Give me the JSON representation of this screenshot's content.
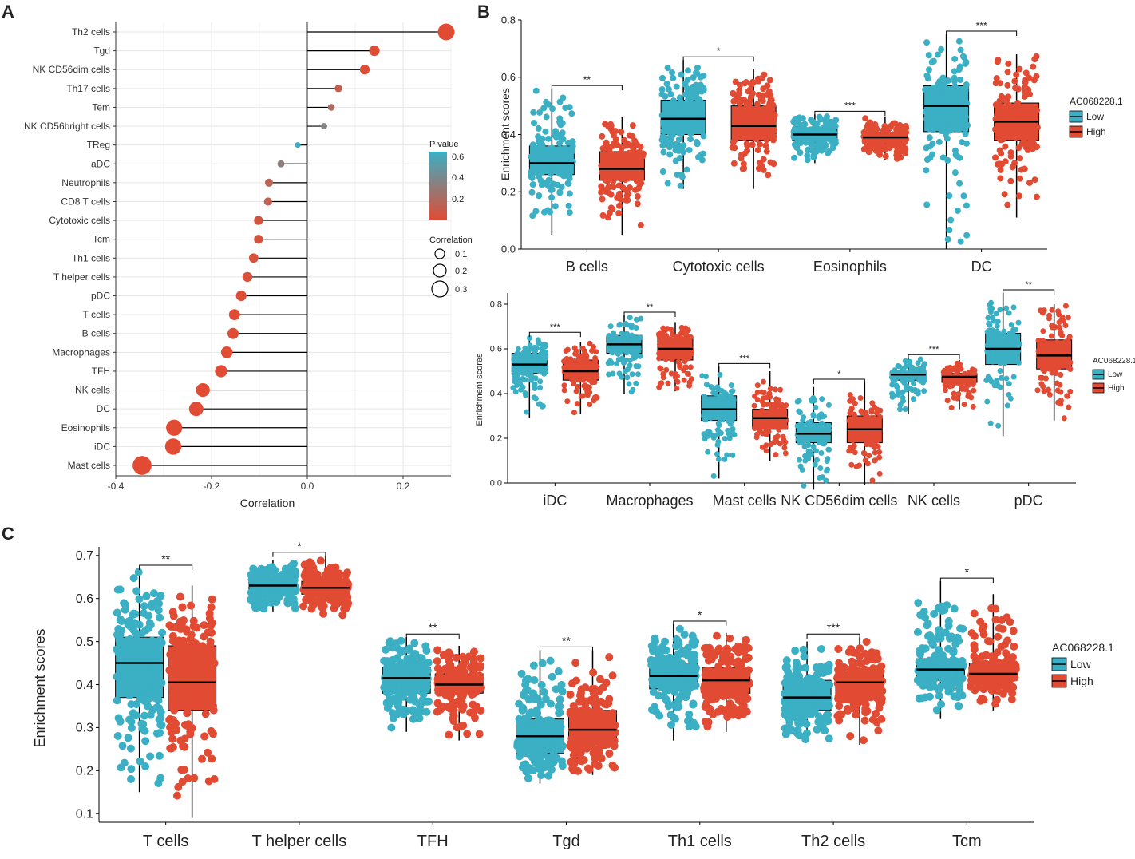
{
  "panel_labels": {
    "a": "A",
    "b": "B",
    "c": "C"
  },
  "colors": {
    "low": "#3BAFC4",
    "high": "#E24B33",
    "grid": "#e6e6e6",
    "line": "#000000"
  },
  "chart_data": [
    {
      "id": "A",
      "type": "lollipop",
      "xlabel": "Correlation",
      "xlim": [
        -0.4,
        0.3
      ],
      "xticks": [
        -0.4,
        -0.2,
        0.0,
        0.2
      ],
      "categories": [
        "Th2 cells",
        "Tgd",
        "NK CD56dim cells",
        "Th17 cells",
        "Tem",
        "NK CD56bright cells",
        "TReg",
        "aDC",
        "Neutrophils",
        "CD8 T cells",
        "Cytotoxic cells",
        "Tcm",
        "Th1 cells",
        "T helper cells",
        "pDC",
        "T cells",
        "B cells",
        "Macrophages",
        "TFH",
        "NK cells",
        "DC",
        "Eosinophils",
        "iDC",
        "Mast cells"
      ],
      "correlation": [
        0.29,
        0.14,
        0.12,
        0.065,
        0.05,
        0.035,
        -0.02,
        -0.055,
        -0.08,
        -0.082,
        -0.102,
        -0.102,
        -0.112,
        -0.125,
        -0.138,
        -0.152,
        -0.155,
        -0.168,
        -0.18,
        -0.218,
        -0.232,
        -0.278,
        -0.28,
        -0.345
      ],
      "pvalue": [
        0.001,
        0.01,
        0.02,
        0.1,
        0.2,
        0.35,
        0.6,
        0.3,
        0.15,
        0.12,
        0.05,
        0.05,
        0.04,
        0.03,
        0.02,
        0.01,
        0.01,
        0.005,
        0.005,
        0.001,
        0.001,
        0.0005,
        0.0005,
        0.0001
      ],
      "legend_p": {
        "title": "P value",
        "ticks": [
          "0.6",
          "0.4",
          "0.2"
        ]
      },
      "legend_size": {
        "title": "Correlation",
        "ticks": [
          "0.1",
          "0.2",
          "0.3"
        ]
      }
    },
    {
      "id": "B-top",
      "type": "boxplot",
      "ylabel": "Enrichment scores",
      "ylim": [
        0.0,
        0.8
      ],
      "yticks": [
        "0.0",
        "0.2",
        "0.4",
        "0.6",
        "0.8"
      ],
      "categories": [
        "B cells",
        "Cytotoxic cells",
        "Eosinophils",
        "DC"
      ],
      "significance": [
        "**",
        "*",
        "***",
        "***"
      ],
      "legend": {
        "title": "AC068228.1",
        "items": [
          "Low",
          "High"
        ]
      },
      "series": [
        {
          "name": "Low",
          "stats": [
            [
              0.05,
              0.26,
              0.3,
              0.36,
              0.56
            ],
            [
              0.21,
              0.4,
              0.455,
              0.52,
              0.66
            ],
            [
              0.3,
              0.38,
              0.4,
              0.42,
              0.47
            ],
            [
              0.0,
              0.41,
              0.5,
              0.57,
              0.75
            ]
          ]
        },
        {
          "name": "High",
          "stats": [
            [
              0.05,
              0.24,
              0.28,
              0.34,
              0.46
            ],
            [
              0.21,
              0.38,
              0.43,
              0.5,
              0.63
            ],
            [
              0.31,
              0.37,
              0.39,
              0.405,
              0.46
            ],
            [
              0.11,
              0.38,
              0.445,
              0.51,
              0.68
            ]
          ]
        }
      ]
    },
    {
      "id": "B-bottom",
      "type": "boxplot",
      "ylabel": "Enrichment scores",
      "ylim": [
        0.0,
        0.85
      ],
      "yticks": [
        "0.0",
        "0.2",
        "0.4",
        "0.6",
        "0.8"
      ],
      "categories": [
        "iDC",
        "Macrophages",
        "Mast cells",
        "NK CD56dim cells",
        "NK cells",
        "pDC"
      ],
      "significance": [
        "***",
        "**",
        "***",
        "*",
        "***",
        "**"
      ],
      "legend": {
        "title": "AC068228.1",
        "items": [
          "Low",
          "High"
        ]
      },
      "series": [
        {
          "name": "Low",
          "stats": [
            [
              0.29,
              0.49,
              0.53,
              0.58,
              0.66
            ],
            [
              0.4,
              0.58,
              0.62,
              0.66,
              0.75
            ],
            [
              0.02,
              0.28,
              0.33,
              0.39,
              0.52
            ],
            [
              -0.03,
              0.18,
              0.22,
              0.27,
              0.43
            ],
            [
              0.31,
              0.46,
              0.485,
              0.5,
              0.56
            ],
            [
              0.21,
              0.53,
              0.6,
              0.67,
              0.85
            ]
          ]
        },
        {
          "name": "High",
          "stats": [
            [
              0.31,
              0.46,
              0.5,
              0.55,
              0.63
            ],
            [
              0.41,
              0.55,
              0.6,
              0.65,
              0.72
            ],
            [
              0.1,
              0.24,
              0.29,
              0.33,
              0.5
            ],
            [
              -0.01,
              0.18,
              0.24,
              0.3,
              0.45
            ],
            [
              0.33,
              0.45,
              0.475,
              0.49,
              0.55
            ],
            [
              0.28,
              0.51,
              0.57,
              0.64,
              0.8
            ]
          ]
        }
      ]
    },
    {
      "id": "C",
      "type": "boxplot",
      "ylabel": "Enrichment scores",
      "ylim": [
        0.08,
        0.72
      ],
      "yticks": [
        "0.1",
        "0.2",
        "0.3",
        "0.4",
        "0.5",
        "0.6",
        "0.7"
      ],
      "categories": [
        "T cells",
        "T helper cells",
        "TFH",
        "Tgd",
        "Th1 cells",
        "Th2 cells",
        "Tcm"
      ],
      "significance": [
        "**",
        "*",
        "**",
        "**",
        "*",
        "***",
        "*"
      ],
      "legend": {
        "title": "AC068228.1",
        "items": [
          "Low",
          "High"
        ]
      },
      "series": [
        {
          "name": "Low",
          "stats": [
            [
              0.15,
              0.37,
              0.45,
              0.51,
              0.67
            ],
            [
              0.57,
              0.615,
              0.63,
              0.645,
              0.69
            ],
            [
              0.29,
              0.38,
              0.415,
              0.44,
              0.51
            ],
            [
              0.17,
              0.24,
              0.28,
              0.32,
              0.48
            ],
            [
              0.27,
              0.39,
              0.42,
              0.45,
              0.54
            ],
            [
              0.27,
              0.34,
              0.37,
              0.41,
              0.5
            ],
            [
              0.32,
              0.41,
              0.435,
              0.46,
              0.64
            ]
          ]
        },
        {
          "name": "High",
          "stats": [
            [
              0.09,
              0.34,
              0.405,
              0.49,
              0.63
            ],
            [
              0.56,
              0.61,
              0.625,
              0.64,
              0.7
            ],
            [
              0.27,
              0.38,
              0.4,
              0.425,
              0.49
            ],
            [
              0.19,
              0.26,
              0.295,
              0.34,
              0.48
            ],
            [
              0.29,
              0.38,
              0.41,
              0.44,
              0.52
            ],
            [
              0.26,
              0.37,
              0.405,
              0.43,
              0.51
            ],
            [
              0.34,
              0.41,
              0.425,
              0.45,
              0.61
            ]
          ]
        }
      ]
    }
  ]
}
